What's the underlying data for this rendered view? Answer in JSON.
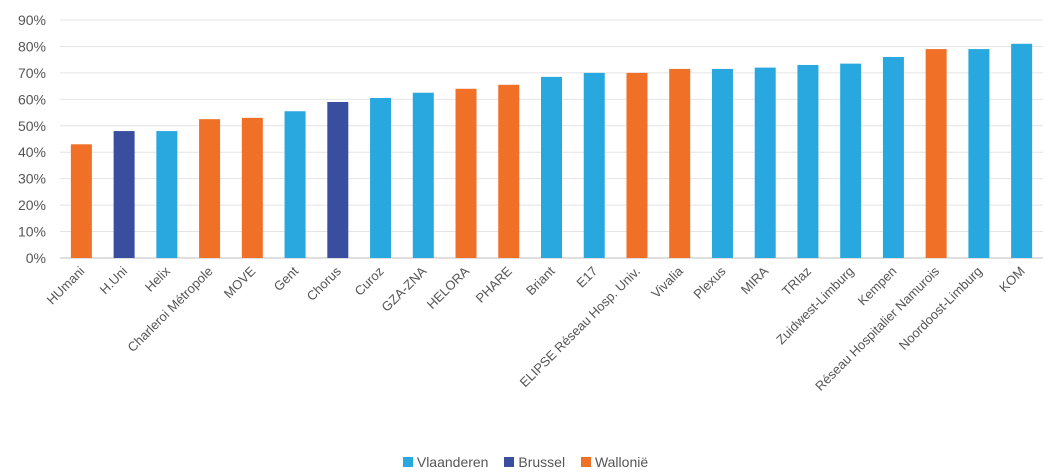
{
  "chart_data": {
    "type": "bar",
    "title": "",
    "xlabel": "",
    "ylabel": "",
    "ylim": [
      0,
      90
    ],
    "y_ticks": [
      "0%",
      "10%",
      "20%",
      "30%",
      "40%",
      "50%",
      "60%",
      "70%",
      "80%",
      "90%"
    ],
    "grid": "horizontal",
    "legend_position": "bottom",
    "categories": [
      "HUmani",
      "H.Uni",
      "Helix",
      "Charleroi Métropole",
      "MOVE",
      "Gent",
      "Chorus",
      "Curoz",
      "GZA-ZNA",
      "HELORA",
      "PHARE",
      "Briant",
      "E17",
      "ELIPSE Réseau Hosp. Univ.",
      "Vivalia",
      "Plexus",
      "MIRA",
      "TRIaz",
      "Zuidwest-Limburg",
      "Kempen",
      "Réseau Hospitalier Namurois",
      "Noordoost-Limburg",
      "KOM"
    ],
    "values": [
      43,
      48,
      48,
      52.5,
      53,
      55.5,
      59,
      60.5,
      62.5,
      64,
      65.5,
      68.5,
      70,
      70,
      71.5,
      71.5,
      72,
      73,
      73.5,
      76,
      79,
      79,
      81
    ],
    "regions": [
      "Wallonië",
      "Brussel",
      "Vlaanderen",
      "Wallonië",
      "Wallonië",
      "Vlaanderen",
      "Brussel",
      "Vlaanderen",
      "Vlaanderen",
      "Wallonië",
      "Wallonië",
      "Vlaanderen",
      "Vlaanderen",
      "Wallonië",
      "Wallonië",
      "Vlaanderen",
      "Vlaanderen",
      "Vlaanderen",
      "Vlaanderen",
      "Vlaanderen",
      "Wallonië",
      "Vlaanderen",
      "Vlaanderen"
    ],
    "legend": [
      {
        "name": "Vlaanderen",
        "color": "#29a8e0"
      },
      {
        "name": "Brussel",
        "color": "#3a4ea0"
      },
      {
        "name": "Wallonië",
        "color": "#f07027"
      }
    ]
  }
}
